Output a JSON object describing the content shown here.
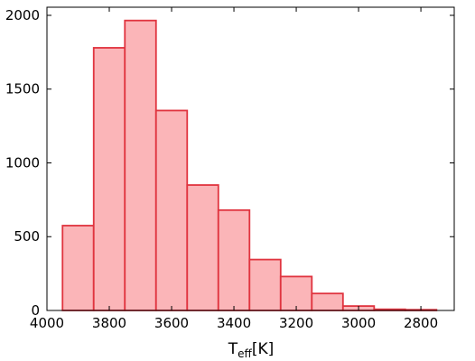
{
  "chart_data": {
    "type": "histogram",
    "xlabel_parts": [
      "T",
      "eff",
      "[K]"
    ],
    "bins": [
      3950,
      3850,
      3750,
      3650,
      3550,
      3450,
      3350,
      3250,
      3150,
      3050,
      2950,
      2850,
      2750
    ],
    "values": [
      575,
      1780,
      1965,
      1355,
      850,
      680,
      345,
      230,
      115,
      30,
      8,
      5
    ],
    "color": "#fbb5b8",
    "edgecolor": "#e0343f",
    "xlim": [
      4000,
      2693
    ],
    "xticks": [
      4000,
      3800,
      3600,
      3400,
      3200,
      3000,
      2800
    ],
    "ylim": [
      0,
      2055
    ],
    "yticks": [
      0,
      500,
      1000,
      1500,
      2000
    ]
  }
}
